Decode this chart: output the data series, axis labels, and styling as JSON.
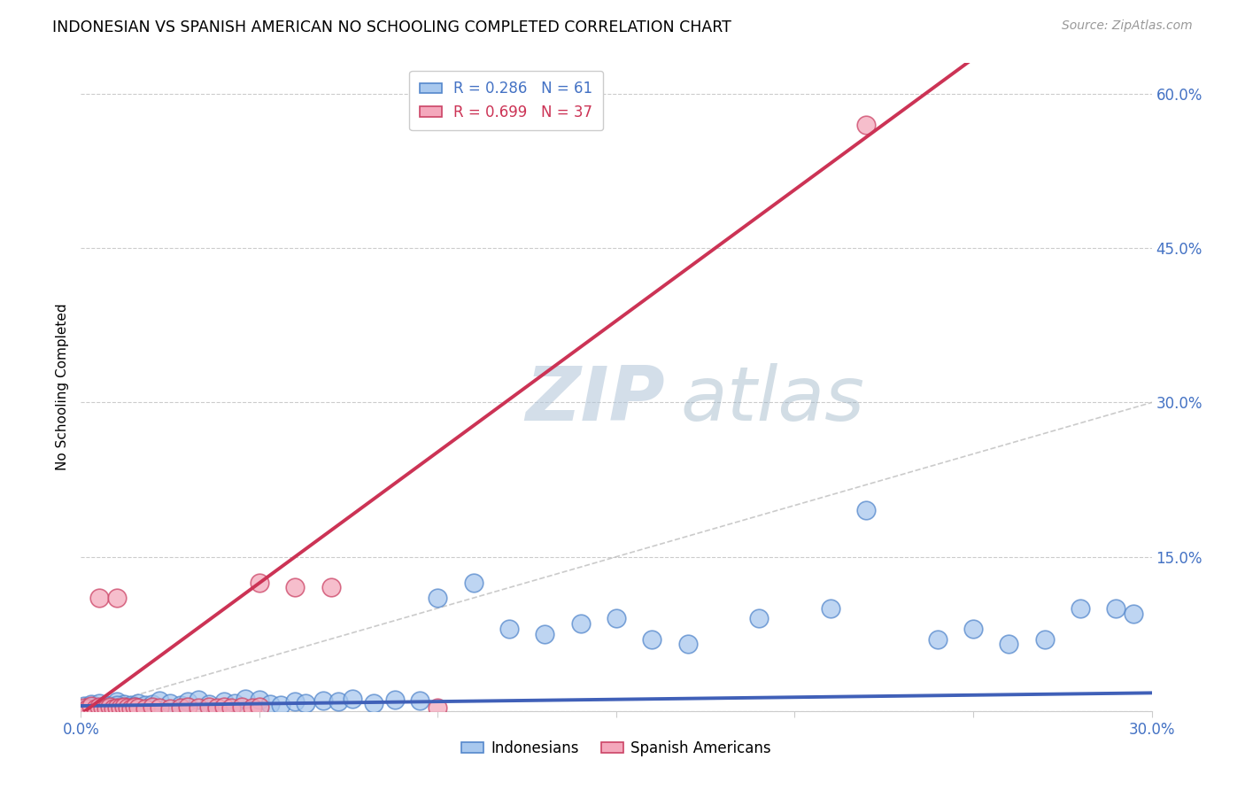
{
  "title": "INDONESIAN VS SPANISH AMERICAN NO SCHOOLING COMPLETED CORRELATION CHART",
  "source": "Source: ZipAtlas.com",
  "ylabel": "No Schooling Completed",
  "xlim": [
    0,
    0.3
  ],
  "ylim": [
    0,
    0.63
  ],
  "xtick_vals": [
    0.0,
    0.05,
    0.1,
    0.15,
    0.2,
    0.25,
    0.3
  ],
  "xtick_labels": [
    "0.0%",
    "",
    "",
    "",
    "",
    "",
    "30.0%"
  ],
  "ytick_vals": [
    0.0,
    0.15,
    0.3,
    0.45,
    0.6
  ],
  "ytick_labels_right": [
    "",
    "15.0%",
    "30.0%",
    "45.0%",
    "60.0%"
  ],
  "legend_line1": "R = 0.286   N = 61",
  "legend_line2": "R = 0.699   N = 37",
  "color_indo_fill": "#A8C8EE",
  "color_indo_edge": "#5588CC",
  "color_span_fill": "#F4A8BC",
  "color_span_edge": "#CC4466",
  "color_line_indo": "#4060B8",
  "color_line_span": "#CC3355",
  "color_diagonal": "#BEBEBE",
  "color_grid": "#CCCCCC",
  "color_tick_label": "#4472C4",
  "watermark_zip": "ZIP",
  "watermark_atlas": "atlas",
  "indo_x": [
    0.001,
    0.002,
    0.003,
    0.004,
    0.005,
    0.006,
    0.007,
    0.008,
    0.009,
    0.01,
    0.011,
    0.012,
    0.013,
    0.014,
    0.015,
    0.016,
    0.018,
    0.02,
    0.022,
    0.025,
    0.028,
    0.03,
    0.033,
    0.036,
    0.04,
    0.043,
    0.046,
    0.05,
    0.053,
    0.056,
    0.06,
    0.063,
    0.068,
    0.072,
    0.076,
    0.082,
    0.088,
    0.095,
    0.1,
    0.11,
    0.12,
    0.13,
    0.14,
    0.15,
    0.16,
    0.17,
    0.19,
    0.21,
    0.22,
    0.24,
    0.25,
    0.26,
    0.27,
    0.28,
    0.29,
    0.295,
    0.003,
    0.006,
    0.01,
    0.015,
    0.02
  ],
  "indo_y": [
    0.005,
    0.003,
    0.007,
    0.004,
    0.008,
    0.002,
    0.006,
    0.005,
    0.003,
    0.009,
    0.004,
    0.007,
    0.003,
    0.006,
    0.005,
    0.008,
    0.006,
    0.007,
    0.01,
    0.008,
    0.006,
    0.009,
    0.011,
    0.007,
    0.009,
    0.008,
    0.012,
    0.011,
    0.007,
    0.006,
    0.009,
    0.008,
    0.01,
    0.009,
    0.012,
    0.008,
    0.011,
    0.01,
    0.11,
    0.125,
    0.08,
    0.075,
    0.085,
    0.09,
    0.07,
    0.065,
    0.09,
    0.1,
    0.195,
    0.07,
    0.08,
    0.065,
    0.07,
    0.1,
    0.1,
    0.095,
    0.004,
    0.003,
    0.006,
    0.004,
    0.003
  ],
  "span_x": [
    0.001,
    0.002,
    0.003,
    0.004,
    0.005,
    0.006,
    0.007,
    0.008,
    0.009,
    0.01,
    0.011,
    0.012,
    0.013,
    0.014,
    0.015,
    0.016,
    0.018,
    0.02,
    0.022,
    0.025,
    0.028,
    0.03,
    0.033,
    0.036,
    0.038,
    0.04,
    0.042,
    0.045,
    0.048,
    0.05,
    0.005,
    0.01,
    0.05,
    0.06,
    0.07,
    0.1,
    0.22
  ],
  "span_y": [
    0.003,
    0.002,
    0.005,
    0.002,
    0.004,
    0.003,
    0.002,
    0.004,
    0.002,
    0.003,
    0.003,
    0.004,
    0.003,
    0.002,
    0.004,
    0.003,
    0.002,
    0.004,
    0.003,
    0.002,
    0.003,
    0.004,
    0.003,
    0.004,
    0.003,
    0.004,
    0.003,
    0.004,
    0.003,
    0.004,
    0.11,
    0.11,
    0.125,
    0.12,
    0.12,
    0.003,
    0.57
  ],
  "reg_indo_m": 0.042,
  "reg_indo_b": 0.005,
  "reg_span_m": 2.55,
  "reg_span_b": -0.003
}
